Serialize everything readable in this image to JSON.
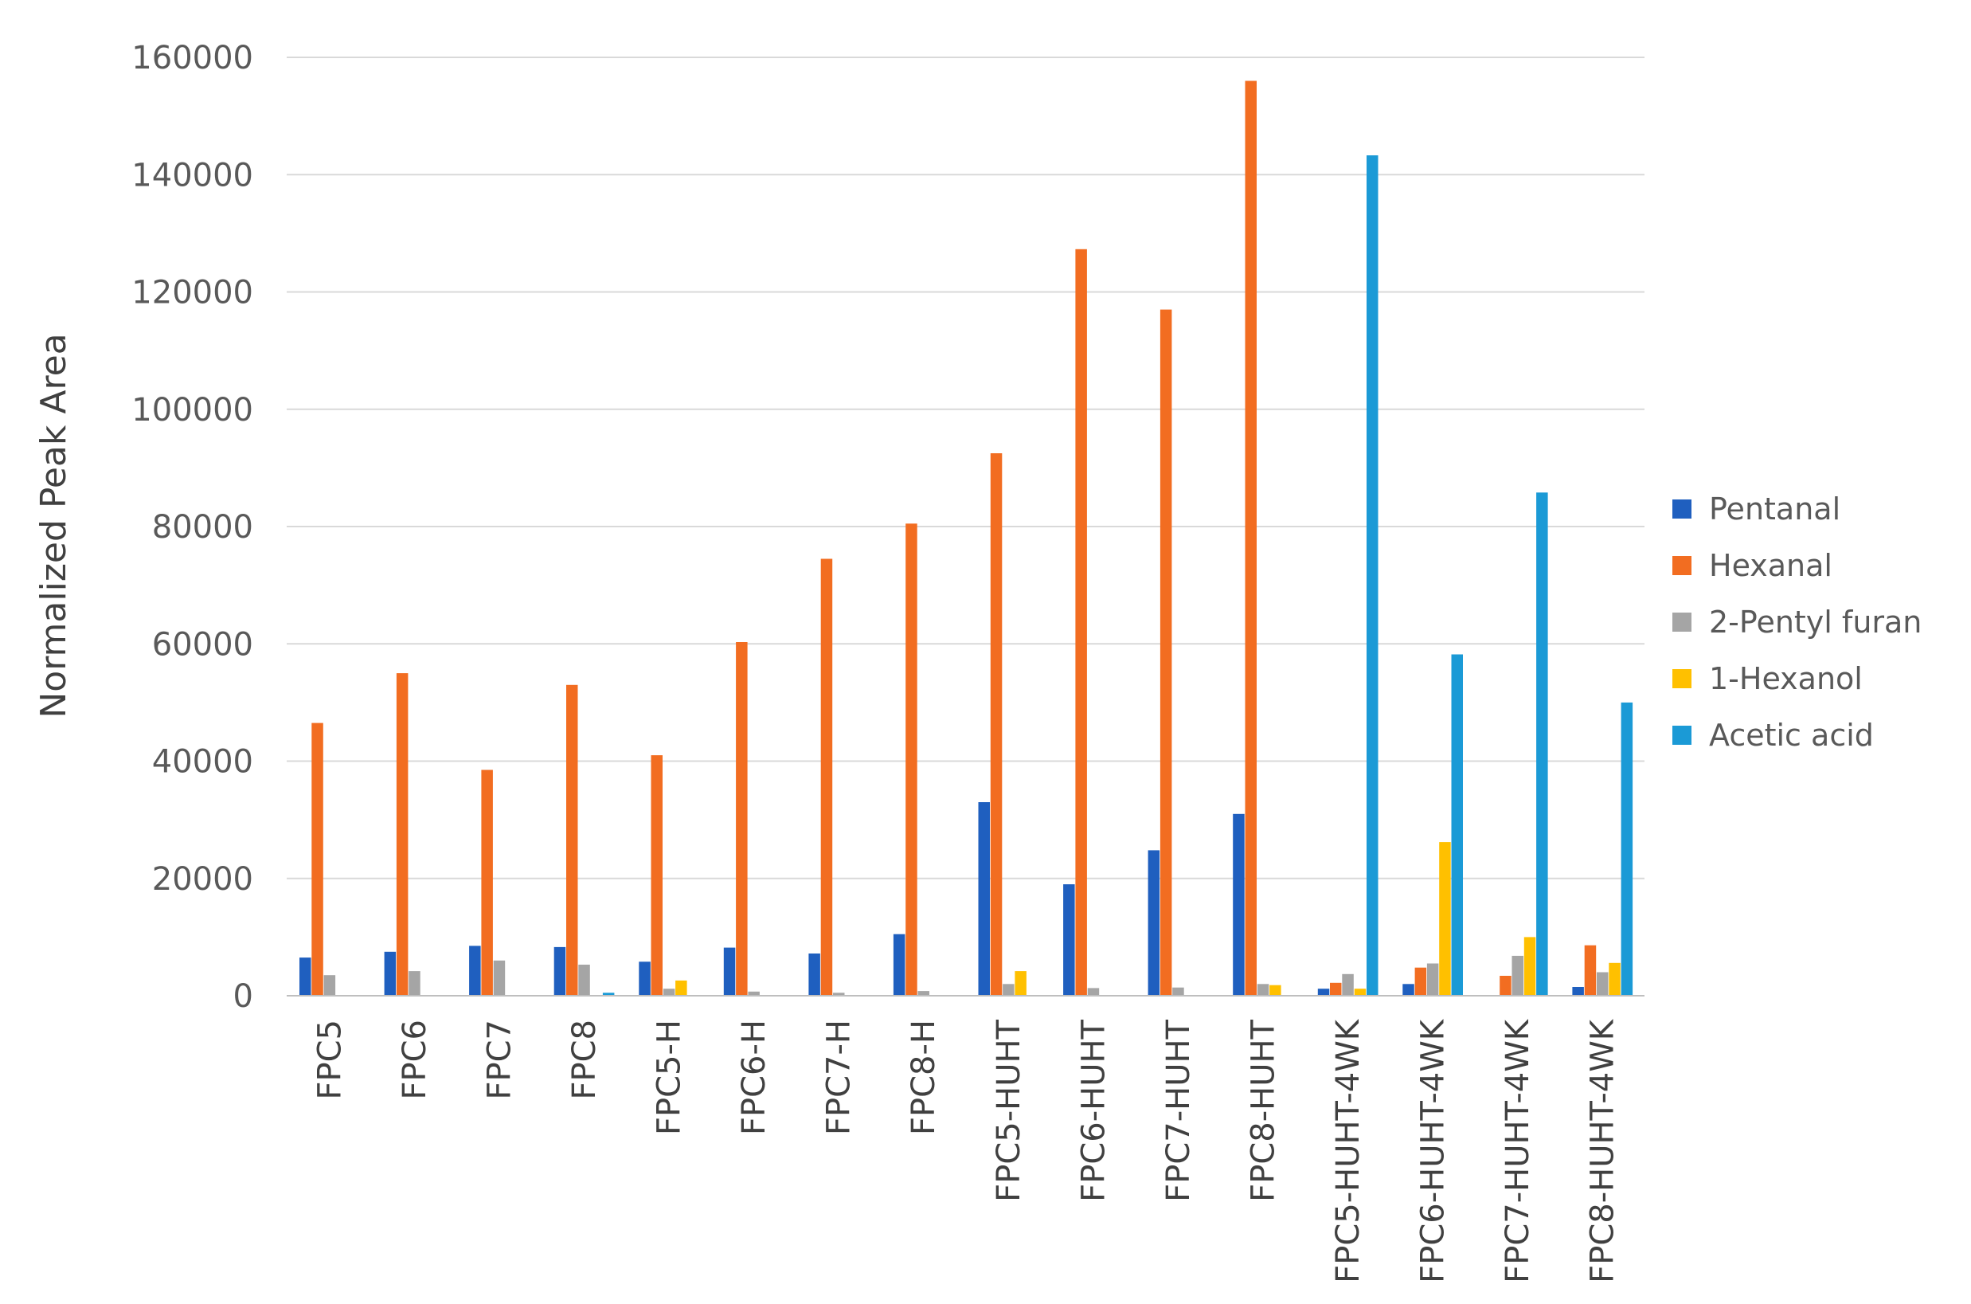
{
  "chart_data": {
    "type": "bar",
    "title": "",
    "xlabel": "",
    "ylabel": "Normalized Peak Area",
    "ylim": [
      0,
      160000
    ],
    "yticks": [
      0,
      20000,
      40000,
      60000,
      80000,
      100000,
      120000,
      140000,
      160000
    ],
    "ytick_labels": [
      "0",
      "20000",
      "40000",
      "60000",
      "80000",
      "100000",
      "120000",
      "140000",
      "160000"
    ],
    "grid": true,
    "legend_position": "right",
    "categories": [
      "FPC5",
      "FPC6",
      "FPC7",
      "FPC8",
      "FPC5-H",
      "FPC6-H",
      "FPC7-H",
      "FPC8-H",
      "FPC5-HUHT",
      "FPC6-HUHT",
      "FPC7-HUHT",
      "FPC8-HUHT",
      "FPC5-HUHT-4WK",
      "FPC6-HUHT-4WK",
      "FPC7-HUHT-4WK",
      "FPC8-HUHT-4WK"
    ],
    "series": [
      {
        "name": "Pentanal",
        "color": "#1f5fbf",
        "values": [
          6500,
          7500,
          8500,
          8300,
          5800,
          8200,
          7200,
          10500,
          33000,
          19000,
          24800,
          31000,
          1200,
          2000,
          0,
          1500
        ]
      },
      {
        "name": "Hexanal",
        "color": "#f26d21",
        "values": [
          46500,
          55000,
          38500,
          53000,
          41000,
          60300,
          74500,
          80500,
          92500,
          127300,
          117000,
          156000,
          2200,
          4800,
          3400,
          8600
        ]
      },
      {
        "name": "2-Pentyl furan",
        "color": "#a5a5a5",
        "values": [
          3500,
          4200,
          6000,
          5300,
          1200,
          700,
          500,
          800,
          2000,
          1300,
          1400,
          2000,
          3700,
          5500,
          6800,
          4000
        ]
      },
      {
        "name": "1-Hexanol",
        "color": "#ffc000",
        "values": [
          0,
          0,
          0,
          0,
          2600,
          0,
          0,
          0,
          4200,
          0,
          0,
          1800,
          1200,
          26200,
          10000,
          5600
        ]
      },
      {
        "name": "Acetic acid",
        "color": "#1b9ad6",
        "values": [
          0,
          0,
          0,
          500,
          0,
          0,
          0,
          0,
          0,
          0,
          0,
          0,
          143300,
          58200,
          85800,
          50000
        ]
      }
    ]
  }
}
